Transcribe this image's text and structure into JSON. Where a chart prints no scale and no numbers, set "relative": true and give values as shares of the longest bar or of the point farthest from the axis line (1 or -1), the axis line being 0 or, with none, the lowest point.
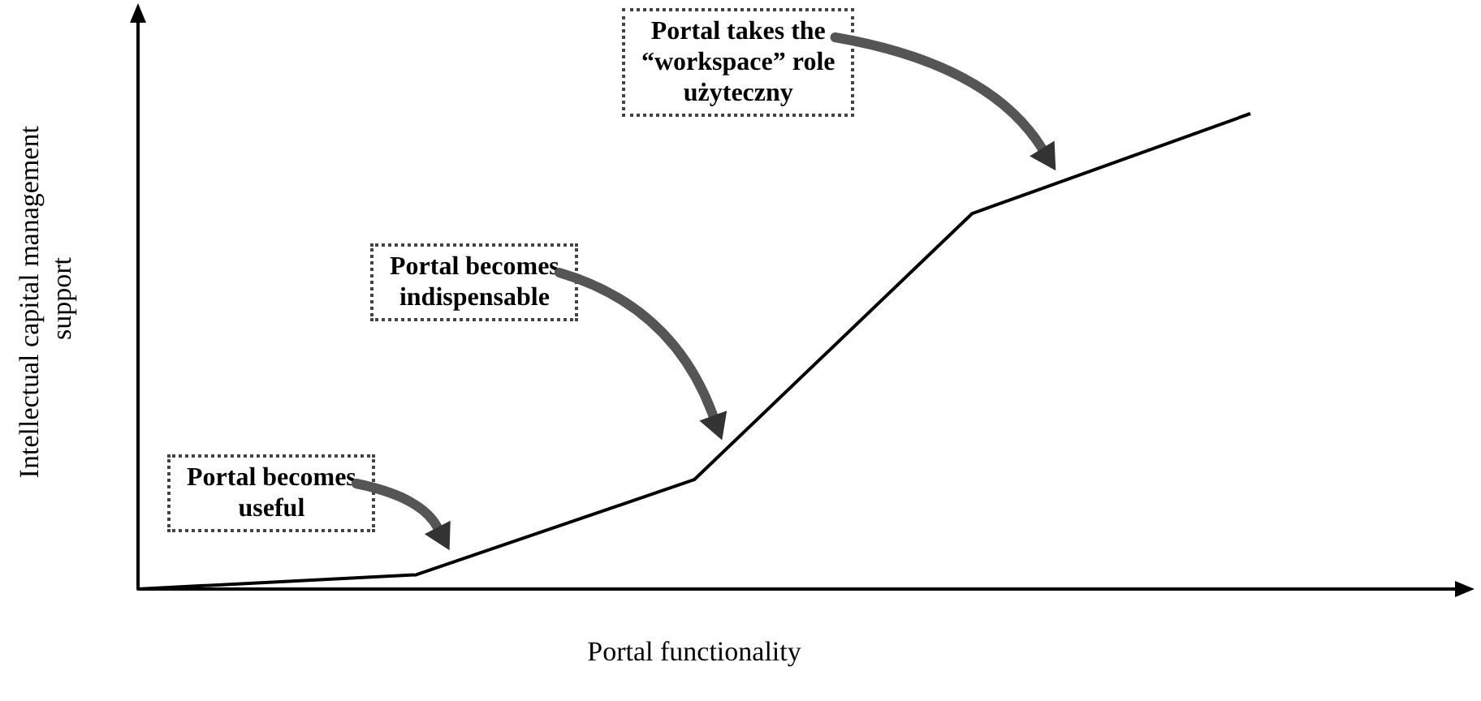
{
  "chart_data": {
    "type": "line",
    "relative": true,
    "categories": [
      null,
      null,
      null,
      null,
      null
    ],
    "values": [
      0,
      0.03,
      0.23,
      0.79,
      1
    ],
    "color": "#000000",
    "marker": "none",
    "line_style": "solid",
    "grid": false,
    "xlabel": "Portal functionality",
    "ylabel": "Intellectual capital management support",
    "annotations": [
      "Portal becomes\nuseful",
      "Portal becomes\nindispensable",
      "Portal takes the\n“workspace” role\nużyteczny"
    ]
  }
}
